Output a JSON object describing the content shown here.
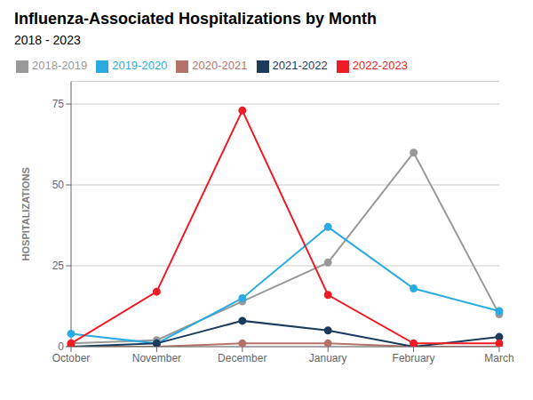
{
  "chart_data": {
    "type": "line",
    "title": "Influenza-Associated Hospitalizations by Month",
    "subtitle": "2018 - 2023",
    "ylabel": "HOSPITALIZATIONS",
    "categories": [
      "October",
      "November",
      "December",
      "January",
      "February",
      "March"
    ],
    "series": [
      {
        "name": "2018-2019",
        "color": "#999999",
        "values": [
          1,
          2,
          14,
          26,
          60,
          10
        ]
      },
      {
        "name": "2019-2020",
        "color": "#29ABE2",
        "values": [
          4,
          1,
          15,
          37,
          18,
          11
        ]
      },
      {
        "name": "2020-2021",
        "color": "#B5726A",
        "values": [
          0,
          0,
          1,
          1,
          0,
          0
        ]
      },
      {
        "name": "2021-2022",
        "color": "#1B3A5C",
        "values": [
          0,
          1,
          8,
          5,
          0,
          3
        ]
      },
      {
        "name": "2022-2023",
        "color": "#EE1C25",
        "values": [
          1,
          17,
          73,
          16,
          1,
          1
        ]
      }
    ],
    "ylim": [
      0,
      82
    ],
    "yticks": [
      0,
      25,
      50,
      75
    ],
    "grid": true,
    "marker": "circle"
  }
}
